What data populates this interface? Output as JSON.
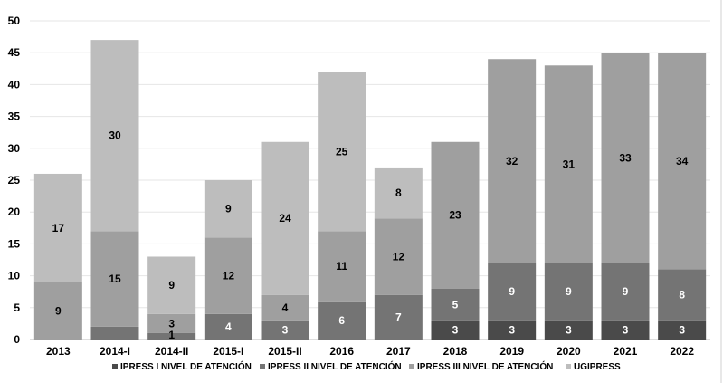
{
  "chart_data": {
    "type": "bar",
    "stacked": true,
    "categories": [
      "2013",
      "2014-I",
      "2014-II",
      "2015-I",
      "2015-II",
      "2016",
      "2017",
      "2018",
      "2019",
      "2020",
      "2021",
      "2022"
    ],
    "series": [
      {
        "name": "IPRESS I NIVEL DE ATENCIÓN",
        "color": "#4a4a4a",
        "values": [
          0,
          0,
          0,
          0,
          0,
          0,
          0,
          3,
          3,
          3,
          3,
          3
        ],
        "labels": [
          null,
          null,
          null,
          null,
          null,
          null,
          null,
          "3",
          "3",
          "3",
          "3",
          "3"
        ]
      },
      {
        "name": "IPRESS II NIVEL DE ATENCIÓN",
        "color": "#747474",
        "values": [
          0,
          2,
          1,
          4,
          3,
          6,
          7,
          5,
          9,
          9,
          9,
          8
        ],
        "labels": [
          null,
          null,
          "1",
          "4",
          "3",
          "6",
          "7",
          "5",
          "9",
          "9",
          "9",
          "8"
        ]
      },
      {
        "name": "IPRESS III NIVEL DE ATENCIÓN",
        "color": "#9f9f9f",
        "values": [
          9,
          15,
          3,
          12,
          4,
          11,
          12,
          23,
          32,
          31,
          33,
          34
        ],
        "labels": [
          "9",
          "15",
          "3",
          "12",
          "4",
          "11",
          "12",
          "23",
          "32",
          "31",
          "33",
          "34"
        ]
      },
      {
        "name": "UGIPRESS",
        "color": "#bdbdbd",
        "values": [
          17,
          30,
          9,
          9,
          24,
          25,
          8,
          0,
          0,
          0,
          0,
          0
        ],
        "labels": [
          "17",
          "30",
          "9",
          "9",
          "24",
          "25",
          "8",
          null,
          null,
          null,
          null,
          null
        ]
      }
    ],
    "label_colors": [
      "#ffffff",
      "#ffffff",
      "#000000",
      "#000000"
    ],
    "special_label_colors": {
      "1-2": "#000000"
    },
    "ylim": [
      0,
      50
    ],
    "yticks": [
      0,
      5,
      10,
      15,
      20,
      25,
      30,
      35,
      40,
      45,
      50
    ],
    "grid": true,
    "legend_position": "bottom",
    "title": "",
    "xlabel": "",
    "ylabel": ""
  }
}
